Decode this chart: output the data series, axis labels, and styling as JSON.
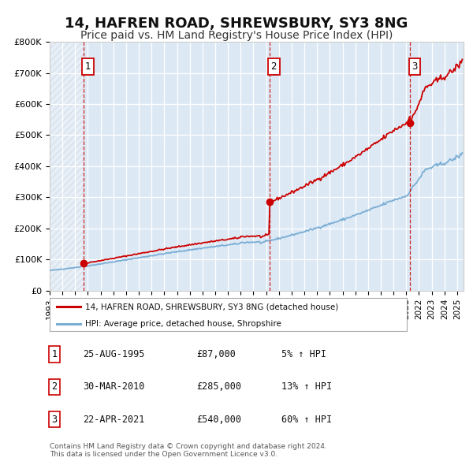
{
  "title": "14, HAFREN ROAD, SHREWSBURY, SY3 8NG",
  "subtitle": "Price paid vs. HM Land Registry's House Price Index (HPI)",
  "title_fontsize": 13,
  "subtitle_fontsize": 10,
  "background_color": "#ffffff",
  "plot_bg_color": "#dce9f5",
  "grid_color": "#ffffff",
  "legend1_label": "14, HAFREN ROAD, SHREWSBURY, SY3 8NG (detached house)",
  "legend2_label": "HPI: Average price, detached house, Shropshire",
  "house_color": "#cc0000",
  "hpi_color": "#7aadd4",
  "ylim": [
    0,
    800000
  ],
  "yticks": [
    0,
    100000,
    200000,
    300000,
    400000,
    500000,
    600000,
    700000,
    800000
  ],
  "ytick_labels": [
    "£0",
    "£100K",
    "£200K",
    "£300K",
    "£400K",
    "£500K",
    "£600K",
    "£700K",
    "£800K"
  ],
  "xlim_start": 1993.0,
  "xlim_end": 2025.5,
  "xtick_years": [
    1993,
    1994,
    1995,
    1996,
    1997,
    1998,
    1999,
    2000,
    2001,
    2002,
    2003,
    2004,
    2005,
    2006,
    2007,
    2008,
    2009,
    2010,
    2011,
    2012,
    2013,
    2014,
    2015,
    2016,
    2017,
    2018,
    2019,
    2020,
    2021,
    2022,
    2023,
    2024,
    2025
  ],
  "sales": [
    {
      "year": 1995.648,
      "price": 87000,
      "label": "1"
    },
    {
      "year": 2010.247,
      "price": 285000,
      "label": "2"
    },
    {
      "year": 2021.311,
      "price": 540000,
      "label": "3"
    }
  ],
  "vline_years": [
    1995.648,
    2010.247,
    2021.311
  ],
  "table_rows": [
    {
      "num": "1",
      "date": "25-AUG-1995",
      "price": "£87,000",
      "change": "5% ↑ HPI"
    },
    {
      "num": "2",
      "date": "30-MAR-2010",
      "price": "£285,000",
      "change": "13% ↑ HPI"
    },
    {
      "num": "3",
      "date": "22-APR-2021",
      "price": "£540,000",
      "change": "60% ↑ HPI"
    }
  ],
  "footnote": "Contains HM Land Registry data © Crown copyright and database right 2024.\nThis data is licensed under the Open Government Licence v3.0."
}
